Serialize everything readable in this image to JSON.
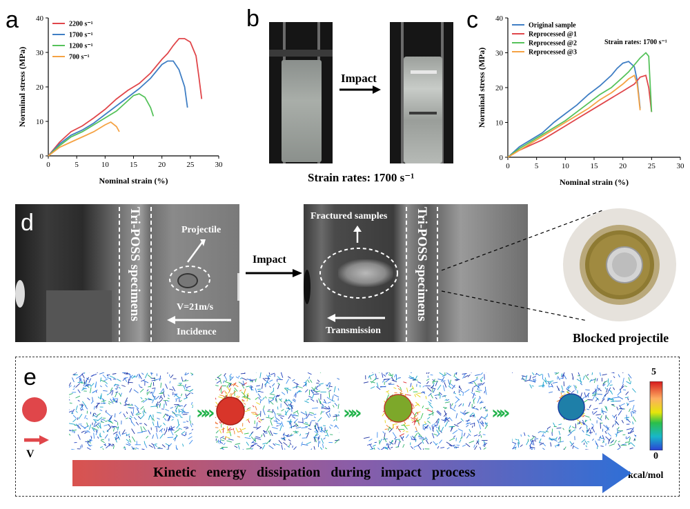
{
  "labels": {
    "a": "a",
    "b": "b",
    "c": "c",
    "d": "d",
    "e": "e"
  },
  "chart_data": [
    {
      "id": "a",
      "type": "line",
      "xlabel": "Nominal strain (%)",
      "ylabel": "Norminal stress (MPa)",
      "xlim": [
        0,
        30
      ],
      "ylim": [
        0,
        40
      ],
      "xticks": [
        0,
        5,
        10,
        15,
        20,
        25,
        30
      ],
      "yticks": [
        0,
        10,
        20,
        30,
        40
      ],
      "series": [
        {
          "name": "2200 s⁻¹",
          "color": "#e0464a",
          "x": [
            0,
            2,
            4,
            6,
            8,
            10,
            12,
            14,
            16,
            18,
            20,
            21,
            22,
            23,
            24,
            25,
            26,
            26.5,
            27
          ],
          "y": [
            0,
            4,
            7,
            8.7,
            11,
            13.5,
            16.5,
            19,
            21,
            24,
            28,
            29.7,
            32,
            34,
            34,
            33,
            29,
            23,
            16.5
          ]
        },
        {
          "name": "1700 s⁻¹",
          "color": "#3f7ec4",
          "x": [
            0,
            2,
            4,
            6,
            8,
            10,
            12,
            14,
            16,
            18,
            19,
            20,
            21,
            22,
            23,
            24,
            24.5
          ],
          "y": [
            0,
            3.5,
            6,
            7.5,
            9.5,
            12,
            14.5,
            17,
            19.5,
            22.5,
            24.5,
            26.5,
            27.5,
            27.5,
            25,
            20,
            14
          ]
        },
        {
          "name": "1200 s⁻¹",
          "color": "#55c25a",
          "x": [
            0,
            2,
            4,
            6,
            8,
            10,
            12,
            14,
            15,
            16,
            17,
            18,
            18.5
          ],
          "y": [
            0,
            3,
            5.5,
            7,
            9,
            11,
            13,
            16,
            17.5,
            18,
            17,
            14,
            11.5
          ]
        },
        {
          "name": "700 s⁻¹",
          "color": "#f5a243",
          "x": [
            0,
            2,
            4,
            6,
            8,
            10,
            11,
            12,
            12.5
          ],
          "y": [
            0,
            2.5,
            4,
            5.5,
            7,
            9,
            9.8,
            8.5,
            7
          ]
        }
      ]
    },
    {
      "id": "c",
      "type": "line",
      "xlabel": "Nominal strain (%)",
      "ylabel": "Norminal stress (MPa)",
      "xlim": [
        0,
        30
      ],
      "ylim": [
        0,
        40
      ],
      "xticks": [
        0,
        5,
        10,
        15,
        20,
        25,
        30
      ],
      "yticks": [
        0,
        10,
        20,
        30,
        40
      ],
      "annotation": "Strain rates: 1700 s⁻¹",
      "series": [
        {
          "name": "Original sample",
          "color": "#3f7ec4",
          "x": [
            0,
            2,
            4,
            6,
            8,
            10,
            12,
            14,
            16,
            18,
            19,
            20,
            21,
            22,
            22.5,
            23
          ],
          "y": [
            0,
            3,
            5,
            7,
            10,
            12.5,
            15,
            18,
            20.5,
            23.5,
            25.5,
            27,
            27.5,
            26,
            22,
            14
          ]
        },
        {
          "name": "Reprocessed @1",
          "color": "#e0464a",
          "x": [
            0,
            2,
            4,
            6,
            8,
            10,
            12,
            14,
            16,
            18,
            20,
            21,
            22,
            23,
            24,
            24.5,
            25
          ],
          "y": [
            0,
            2,
            3.5,
            5,
            7,
            9,
            11,
            13,
            15,
            17,
            19,
            20,
            21,
            23,
            23.5,
            20,
            13
          ]
        },
        {
          "name": "Reprocessed @2",
          "color": "#55c25a",
          "x": [
            0,
            2,
            4,
            6,
            8,
            10,
            12,
            14,
            16,
            18,
            20,
            21,
            22,
            23,
            24,
            24.5,
            25
          ],
          "y": [
            0,
            2.5,
            4.5,
            6.5,
            8.5,
            10.5,
            13,
            15.5,
            18,
            20,
            23,
            24.5,
            26.5,
            28.5,
            30,
            29,
            13
          ]
        },
        {
          "name": "Reprocessed @3",
          "color": "#f5a243",
          "x": [
            0,
            2,
            4,
            6,
            8,
            10,
            12,
            14,
            16,
            18,
            20,
            21,
            22,
            22.5,
            23
          ],
          "y": [
            0,
            2,
            4,
            6,
            8,
            10,
            12,
            14,
            16.5,
            18.5,
            21,
            22.5,
            23.5,
            21,
            13.5
          ]
        }
      ]
    }
  ],
  "panel_b": {
    "impact_label": "Impact",
    "caption": "Strain rates: 1700 s⁻¹"
  },
  "panel_d": {
    "specimen_label": "Tri-POSS specimens",
    "projectile_label": "Projectile",
    "velocity_label": "V=21m/s",
    "incidence_label": "Incidence",
    "impact_label": "Impact",
    "fractured_label": "Fractured samples",
    "transmission_label": "Transmission",
    "blocked_label": "Blocked projectile"
  },
  "panel_e": {
    "velocity_label": "V",
    "arrow_text": "Kinetic   energy   dissipation   during   impact   process",
    "colorbar_max": "5",
    "colorbar_min": "0",
    "colorbar_unit": "kcal/mol"
  },
  "colors": {
    "grad_start": "#d9534f",
    "grad_end": "#2f6fd6",
    "chevron": "#21b24a"
  }
}
